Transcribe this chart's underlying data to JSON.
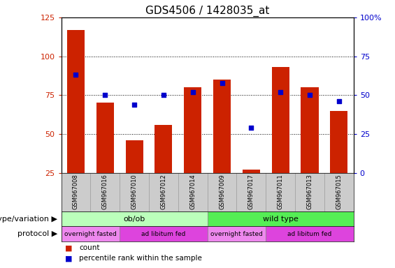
{
  "title": "GDS4506 / 1428035_at",
  "samples": [
    "GSM967008",
    "GSM967016",
    "GSM967010",
    "GSM967012",
    "GSM967014",
    "GSM967009",
    "GSM967017",
    "GSM967011",
    "GSM967013",
    "GSM967015"
  ],
  "counts": [
    117,
    70,
    46,
    56,
    80,
    85,
    27,
    93,
    80,
    65
  ],
  "percentiles": [
    63,
    50,
    44,
    50,
    52,
    58,
    29,
    52,
    50,
    46
  ],
  "ylim_left": [
    25,
    125
  ],
  "ylim_right": [
    0,
    100
  ],
  "yticks_left": [
    25,
    50,
    75,
    100,
    125
  ],
  "yticks_right": [
    0,
    25,
    50,
    75,
    100
  ],
  "ytick_labels_left": [
    "25",
    "50",
    "75",
    "100",
    "125"
  ],
  "ytick_labels_right": [
    "0",
    "25",
    "50",
    "75",
    "100%"
  ],
  "bar_color": "#cc2200",
  "dot_color": "#0000cc",
  "bar_width": 0.6,
  "genotype_groups": [
    {
      "text": "ob/ob",
      "start": 0,
      "end": 5,
      "color": "#bbffbb"
    },
    {
      "text": "wild type",
      "start": 5,
      "end": 10,
      "color": "#55ee55"
    }
  ],
  "protocol_groups": [
    {
      "text": "overnight fasted",
      "start": 0,
      "end": 2,
      "color": "#ee88ee"
    },
    {
      "text": "ad libitum fed",
      "start": 2,
      "end": 5,
      "color": "#dd44dd"
    },
    {
      "text": "overnight fasted",
      "start": 5,
      "end": 7,
      "color": "#ee88ee"
    },
    {
      "text": "ad libitum fed",
      "start": 7,
      "end": 10,
      "color": "#dd44dd"
    }
  ],
  "legend_items": [
    {
      "label": "count",
      "color": "#cc2200"
    },
    {
      "label": "percentile rank within the sample",
      "color": "#0000cc"
    }
  ],
  "background_color": "#ffffff",
  "tick_area_color": "#cccccc",
  "title_fontsize": 11,
  "axis_fontsize": 8,
  "row_label_fontsize": 8,
  "sample_fontsize": 6,
  "group_fontsize": 8,
  "protocol_fontsize": 6.5
}
